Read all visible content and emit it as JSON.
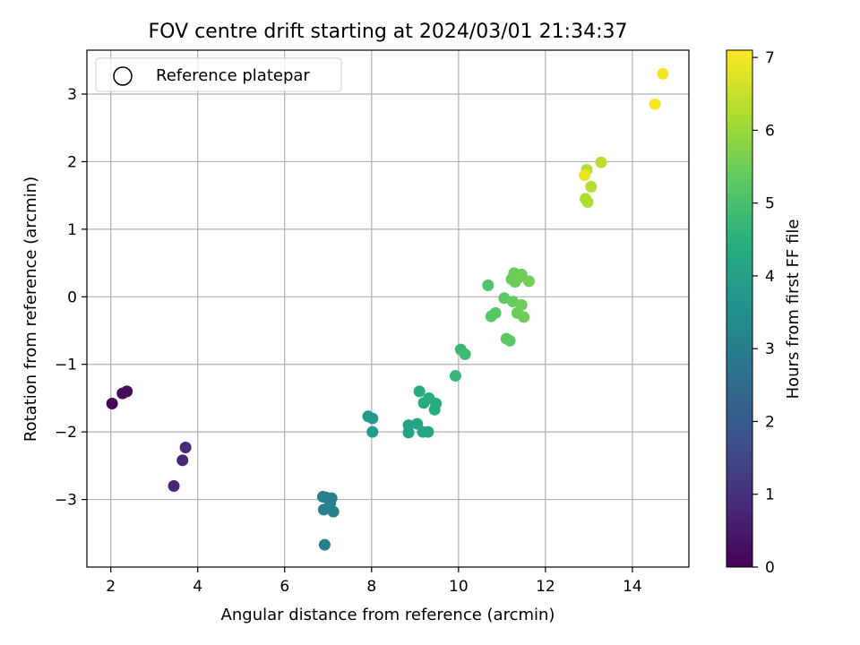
{
  "chart_data": {
    "type": "scatter",
    "title": "FOV centre drift starting at 2024/03/01 21:34:37",
    "xlabel": "Angular distance from reference (arcmin)",
    "ylabel": "Rotation from reference (arcmin)",
    "xlim": [
      1.45,
      15.3
    ],
    "ylim": [
      -4.0,
      3.65
    ],
    "xticks": [
      2,
      4,
      6,
      8,
      10,
      12,
      14
    ],
    "yticks": [
      -3,
      -2,
      -1,
      0,
      1,
      2,
      3
    ],
    "grid": true,
    "legend": {
      "position": "top-left",
      "entries": [
        "Reference platepar"
      ]
    },
    "colorbar": {
      "label": "Hours from first FF file",
      "range": [
        0,
        7.1
      ],
      "ticks": [
        0,
        1,
        2,
        3,
        4,
        5,
        6,
        7
      ],
      "colormap": "viridis"
    },
    "points": [
      {
        "x": 2.03,
        "y": -1.58,
        "c": 0.1
      },
      {
        "x": 2.27,
        "y": -1.43,
        "c": 0.2
      },
      {
        "x": 2.37,
        "y": -1.4,
        "c": 0.25
      },
      {
        "x": 3.72,
        "y": -2.23,
        "c": 0.8
      },
      {
        "x": 3.65,
        "y": -2.42,
        "c": 0.8
      },
      {
        "x": 3.45,
        "y": -2.8,
        "c": 0.75
      },
      {
        "x": 6.88,
        "y": -2.96,
        "c": 3.0
      },
      {
        "x": 6.95,
        "y": -2.97,
        "c": 3.05
      },
      {
        "x": 7.08,
        "y": -2.98,
        "c": 3.1
      },
      {
        "x": 7.05,
        "y": -3.05,
        "c": 3.1
      },
      {
        "x": 6.9,
        "y": -3.15,
        "c": 3.1
      },
      {
        "x": 7.12,
        "y": -3.18,
        "c": 3.15
      },
      {
        "x": 6.92,
        "y": -3.67,
        "c": 3.05
      },
      {
        "x": 7.92,
        "y": -1.77,
        "c": 3.8
      },
      {
        "x": 8.02,
        "y": -1.8,
        "c": 3.8
      },
      {
        "x": 8.02,
        "y": -2.0,
        "c": 3.85
      },
      {
        "x": 8.85,
        "y": -1.9,
        "c": 4.1
      },
      {
        "x": 8.85,
        "y": -2.01,
        "c": 4.1
      },
      {
        "x": 9.05,
        "y": -1.88,
        "c": 4.15
      },
      {
        "x": 9.18,
        "y": -2.0,
        "c": 4.2
      },
      {
        "x": 9.3,
        "y": -2.0,
        "c": 4.2
      },
      {
        "x": 9.1,
        "y": -1.4,
        "c": 4.3
      },
      {
        "x": 9.2,
        "y": -1.57,
        "c": 4.3
      },
      {
        "x": 9.32,
        "y": -1.5,
        "c": 4.35
      },
      {
        "x": 9.48,
        "y": -1.58,
        "c": 4.4
      },
      {
        "x": 9.45,
        "y": -1.67,
        "c": 4.4
      },
      {
        "x": 9.93,
        "y": -1.17,
        "c": 4.7
      },
      {
        "x": 10.05,
        "y": -0.78,
        "c": 4.75
      },
      {
        "x": 10.15,
        "y": -0.85,
        "c": 4.8
      },
      {
        "x": 10.68,
        "y": 0.17,
        "c": 5.1
      },
      {
        "x": 10.75,
        "y": -0.29,
        "c": 5.2
      },
      {
        "x": 10.85,
        "y": -0.24,
        "c": 5.2
      },
      {
        "x": 11.05,
        "y": -0.02,
        "c": 5.3
      },
      {
        "x": 11.1,
        "y": -0.62,
        "c": 5.3
      },
      {
        "x": 11.18,
        "y": -0.65,
        "c": 5.3
      },
      {
        "x": 11.22,
        "y": 0.26,
        "c": 5.4
      },
      {
        "x": 11.28,
        "y": 0.35,
        "c": 5.45
      },
      {
        "x": 11.3,
        "y": 0.22,
        "c": 5.45
      },
      {
        "x": 11.38,
        "y": 0.28,
        "c": 5.5
      },
      {
        "x": 11.45,
        "y": 0.33,
        "c": 5.5
      },
      {
        "x": 11.25,
        "y": -0.07,
        "c": 5.4
      },
      {
        "x": 11.35,
        "y": -0.24,
        "c": 5.45
      },
      {
        "x": 11.45,
        "y": -0.12,
        "c": 5.5
      },
      {
        "x": 11.5,
        "y": -0.3,
        "c": 5.5
      },
      {
        "x": 11.62,
        "y": 0.23,
        "c": 5.55
      },
      {
        "x": 12.95,
        "y": 1.88,
        "c": 6.3
      },
      {
        "x": 12.9,
        "y": 1.8,
        "c": 6.9
      },
      {
        "x": 13.05,
        "y": 1.63,
        "c": 6.3
      },
      {
        "x": 12.92,
        "y": 1.45,
        "c": 6.2
      },
      {
        "x": 12.97,
        "y": 1.4,
        "c": 6.25
      },
      {
        "x": 13.28,
        "y": 1.99,
        "c": 6.35
      },
      {
        "x": 14.52,
        "y": 2.85,
        "c": 7.05
      },
      {
        "x": 14.7,
        "y": 3.3,
        "c": 7.0
      }
    ]
  }
}
